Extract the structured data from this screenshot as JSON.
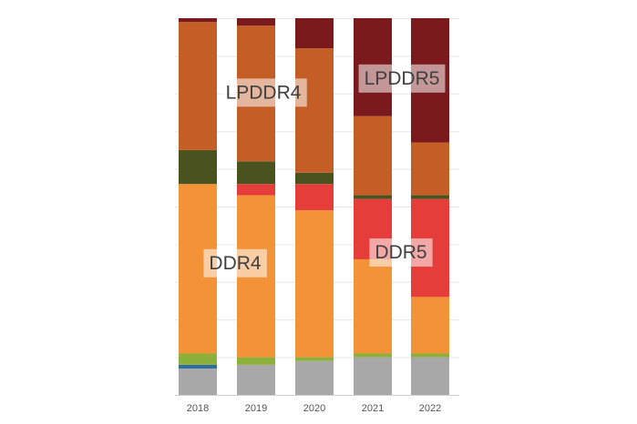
{
  "chart_data": {
    "type": "bar",
    "stacked": true,
    "normalized": true,
    "categories": [
      "2018",
      "2019",
      "2020",
      "2021",
      "2022"
    ],
    "ylim": [
      0,
      100
    ],
    "grid": true,
    "series": [
      {
        "key": "gray",
        "color": "#A8A8A8",
        "values": [
          7,
          8,
          9,
          10,
          10
        ]
      },
      {
        "key": "blue",
        "color": "#2E6DA4",
        "values": [
          1,
          0,
          0,
          0,
          0
        ]
      },
      {
        "key": "yellow-green",
        "color": "#8DB03A",
        "values": [
          3,
          2,
          1,
          1,
          1
        ]
      },
      {
        "name": "DDR4",
        "key": "ddr4",
        "color": "#F39237",
        "values": [
          45,
          43,
          39,
          25,
          15
        ]
      },
      {
        "name": "DDR5",
        "key": "ddr5",
        "color": "#E53E3A",
        "values": [
          0,
          3,
          7,
          16,
          26
        ]
      },
      {
        "key": "olive",
        "color": "#4A5220",
        "values": [
          9,
          6,
          3,
          1,
          1
        ]
      },
      {
        "name": "LPDDR4",
        "key": "lpddr4",
        "color": "#C45E26",
        "values": [
          34,
          36,
          33,
          21,
          14
        ]
      },
      {
        "name": "LPDDR5",
        "key": "lpddr5",
        "color": "#7A1A1C",
        "values": [
          1,
          2,
          8,
          26,
          33
        ]
      }
    ],
    "annotations": [
      {
        "text": "LPDDR4",
        "series": "lpddr4",
        "category": "2019"
      },
      {
        "text": "LPDDR5",
        "series": "lpddr5",
        "category": "2022"
      },
      {
        "text": "DDR5",
        "series": "ddr5",
        "category": "2022"
      },
      {
        "text": "DDR4",
        "series": "ddr4",
        "category": "2018"
      }
    ]
  }
}
